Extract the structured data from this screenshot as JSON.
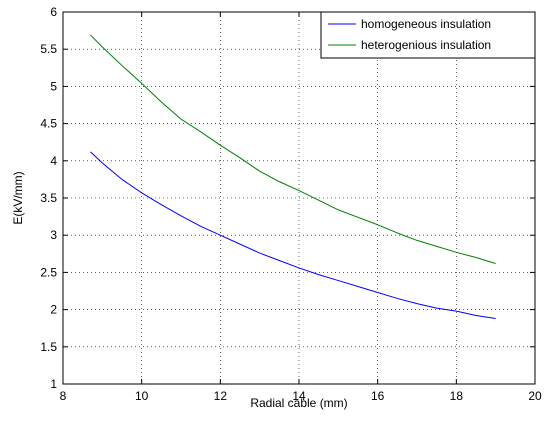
{
  "chart_data": {
    "type": "line",
    "title": "",
    "xlabel": "Radial cable (mm)",
    "ylabel": "E(kV/mm)",
    "xlim": [
      8,
      20
    ],
    "ylim": [
      1,
      6
    ],
    "xticks": [
      8,
      10,
      12,
      14,
      16,
      18,
      20
    ],
    "yticks": [
      1,
      1.5,
      2,
      2.5,
      3,
      3.5,
      4,
      4.5,
      5,
      5.5,
      6
    ],
    "xtick_labels": [
      "8",
      "10",
      "12",
      "14",
      "16",
      "18",
      "20"
    ],
    "ytick_labels": [
      "1",
      "1.5",
      "2",
      "2.5",
      "3",
      "3.5",
      "4",
      "4.5",
      "5",
      "5.5",
      "6"
    ],
    "grid": true,
    "legend_position": "top-right",
    "series": [
      {
        "name": "homogeneous insulation",
        "color": "#0000ff",
        "x": [
          8.7,
          9.0,
          9.5,
          10.0,
          10.5,
          11.0,
          11.5,
          12.0,
          12.5,
          13.0,
          13.5,
          14.0,
          14.5,
          15.0,
          15.5,
          16.0,
          16.5,
          17.0,
          17.5,
          18.0,
          18.5,
          19.0
        ],
        "y": [
          4.12,
          3.97,
          3.75,
          3.57,
          3.41,
          3.26,
          3.12,
          3.0,
          2.88,
          2.76,
          2.66,
          2.56,
          2.47,
          2.39,
          2.31,
          2.23,
          2.15,
          2.08,
          2.02,
          1.98,
          1.92,
          1.88
        ]
      },
      {
        "name": "heterogenious insulation",
        "color": "#008000",
        "x": [
          8.7,
          9.0,
          9.5,
          10.0,
          10.5,
          11.0,
          11.5,
          12.0,
          12.5,
          13.0,
          13.5,
          14.0,
          14.5,
          15.0,
          15.5,
          16.0,
          16.5,
          17.0,
          17.5,
          18.0,
          18.5,
          19.0
        ],
        "y": [
          5.69,
          5.53,
          5.28,
          5.04,
          4.79,
          4.56,
          4.39,
          4.21,
          4.04,
          3.86,
          3.72,
          3.6,
          3.47,
          3.34,
          3.24,
          3.14,
          3.03,
          2.93,
          2.85,
          2.77,
          2.7,
          2.62
        ]
      }
    ]
  }
}
